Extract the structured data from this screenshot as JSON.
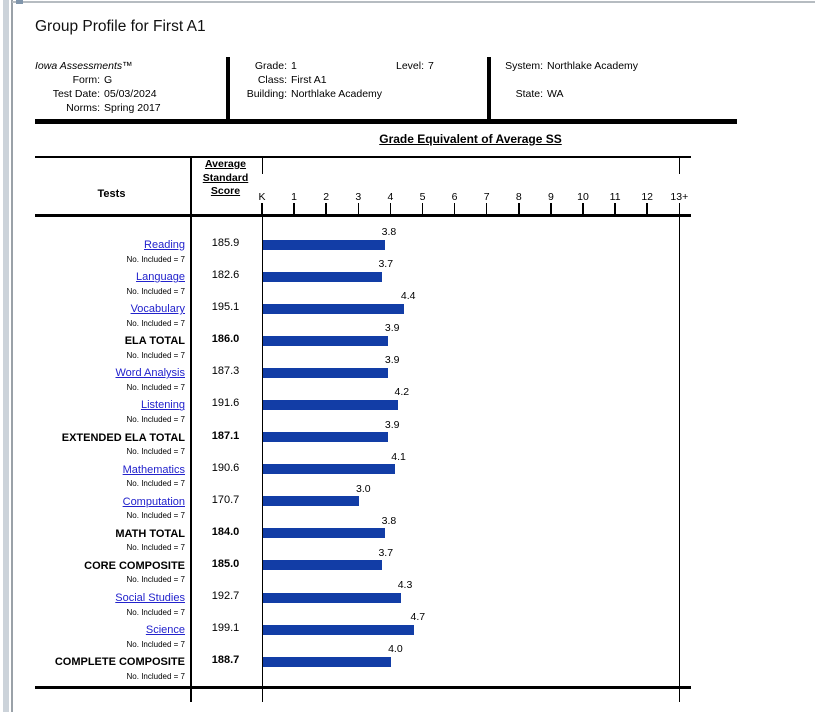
{
  "page": {
    "title": "Group Profile for First A1"
  },
  "info_panel": {
    "product": "Iowa Assessments™",
    "left": [
      {
        "label": "Form:",
        "value": "G"
      },
      {
        "label": "Test Date:",
        "value": "05/03/2024"
      },
      {
        "label": "Norms:",
        "value": "Spring 2017"
      }
    ],
    "middle": [
      {
        "label": "Grade:",
        "value": "1"
      },
      {
        "label": "Class:",
        "value": "First A1"
      },
      {
        "label": "Building:",
        "value": "Northlake Academy"
      }
    ],
    "level": {
      "label": "Level:",
      "value": "7"
    },
    "right": [
      {
        "label": "System:",
        "value": "Northlake Academy"
      },
      {
        "label": "State:",
        "value": "WA"
      }
    ]
  },
  "chart_data": {
    "type": "bar",
    "title": "Grade Equivalent of Average SS",
    "col_headers": {
      "tests": "Tests",
      "avg_ss": [
        "Average",
        "Standard",
        "Score"
      ]
    },
    "x_ticks": [
      "K",
      "1",
      "2",
      "3",
      "4",
      "5",
      "6",
      "7",
      "8",
      "9",
      "10",
      "11",
      "12",
      "13+"
    ],
    "xlim": [
      "K",
      "13+"
    ],
    "included_label": "No. Included = 7",
    "bar_color": "#123da6",
    "link_color": "#2222cc",
    "rows": [
      {
        "name": "Reading",
        "is_link": true,
        "avg_standard_score": "185.9",
        "grade_equivalent": 3.8,
        "ge_label": "3.8"
      },
      {
        "name": "Language",
        "is_link": true,
        "avg_standard_score": "182.6",
        "grade_equivalent": 3.7,
        "ge_label": "3.7"
      },
      {
        "name": "Vocabulary",
        "is_link": true,
        "avg_standard_score": "195.1",
        "grade_equivalent": 4.4,
        "ge_label": "4.4"
      },
      {
        "name": "ELA TOTAL",
        "is_link": false,
        "avg_standard_score": "186.0",
        "grade_equivalent": 3.9,
        "ge_label": "3.9"
      },
      {
        "name": "Word Analysis",
        "is_link": true,
        "avg_standard_score": "187.3",
        "grade_equivalent": 3.9,
        "ge_label": "3.9"
      },
      {
        "name": "Listening",
        "is_link": true,
        "avg_standard_score": "191.6",
        "grade_equivalent": 4.2,
        "ge_label": "4.2"
      },
      {
        "name": "EXTENDED ELA TOTAL",
        "is_link": false,
        "avg_standard_score": "187.1",
        "grade_equivalent": 3.9,
        "ge_label": "3.9"
      },
      {
        "name": "Mathematics",
        "is_link": true,
        "avg_standard_score": "190.6",
        "grade_equivalent": 4.1,
        "ge_label": "4.1"
      },
      {
        "name": "Computation",
        "is_link": true,
        "avg_standard_score": "170.7",
        "grade_equivalent": 3.0,
        "ge_label": "3.0"
      },
      {
        "name": "MATH TOTAL",
        "is_link": false,
        "avg_standard_score": "184.0",
        "grade_equivalent": 3.8,
        "ge_label": "3.8"
      },
      {
        "name": "CORE COMPOSITE",
        "is_link": false,
        "avg_standard_score": "185.0",
        "grade_equivalent": 3.7,
        "ge_label": "3.7"
      },
      {
        "name": "Social Studies",
        "is_link": true,
        "avg_standard_score": "192.7",
        "grade_equivalent": 4.3,
        "ge_label": "4.3"
      },
      {
        "name": "Science",
        "is_link": true,
        "avg_standard_score": "199.1",
        "grade_equivalent": 4.7,
        "ge_label": "4.7"
      },
      {
        "name": "COMPLETE COMPOSITE",
        "is_link": false,
        "avg_standard_score": "188.7",
        "grade_equivalent": 4.0,
        "ge_label": "4.0"
      }
    ]
  }
}
